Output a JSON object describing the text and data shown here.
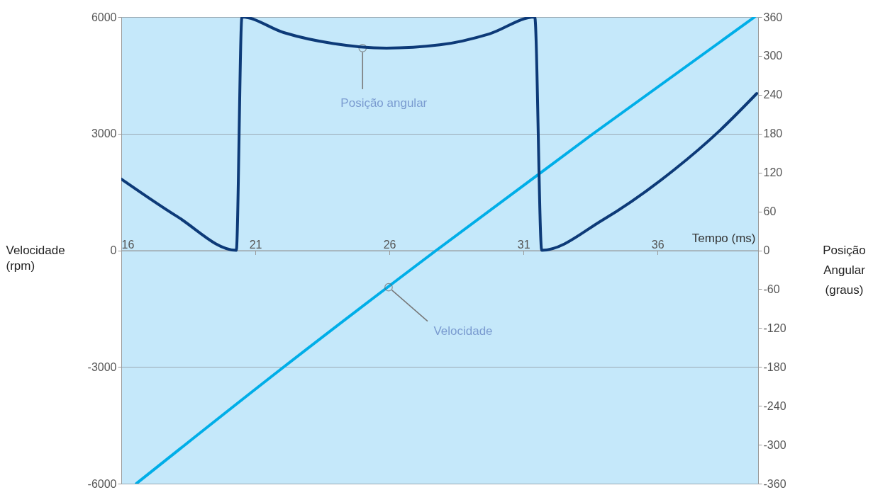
{
  "chart_data": {
    "type": "line",
    "xlabel": "Tempo (ms)",
    "ylabel": "Velocidade\n(rpm)",
    "y2label": "Posição\nAngular\n(graus)",
    "xlim": [
      16,
      39.75
    ],
    "xticks": [
      16,
      21,
      26,
      31,
      36
    ],
    "ylim": [
      -6000,
      6000
    ],
    "yticks": [
      -6000,
      -3000,
      0,
      3000,
      6000
    ],
    "y2lim": [
      -360,
      360
    ],
    "y2ticks": [
      -360,
      -300,
      -240,
      -180,
      -120,
      -60,
      0,
      60,
      120,
      180,
      240,
      300,
      360
    ],
    "grid": "y",
    "marker": "none",
    "line_style": "solid",
    "series": [
      {
        "color": "#0d3a78",
        "axis": "y2",
        "x": [
          16.0,
          18.09,
          20.29,
          20.5,
          22.06,
          23.91,
          25.89,
          27.88,
          29.73,
          31.42,
          31.68,
          33.96,
          36.61,
          38.3,
          39.7
        ],
        "values": [
          110,
          52,
          0,
          360,
          336,
          319,
          312,
          317,
          334,
          360,
          0,
          47,
          124,
          184,
          242
        ]
      },
      {
        "color": "#00aee8",
        "x": [
          16.56,
          22.06,
          27.75,
          33.6,
          39.62
        ],
        "values": [
          -6000,
          -3000,
          0,
          3000,
          6000
        ]
      }
    ],
    "annotations": [
      {
        "text": "Posição angular",
        "x": 25.0,
        "y": 5200
      },
      {
        "text": "Velocidade",
        "x": 25.97,
        "y": -950
      }
    ]
  }
}
